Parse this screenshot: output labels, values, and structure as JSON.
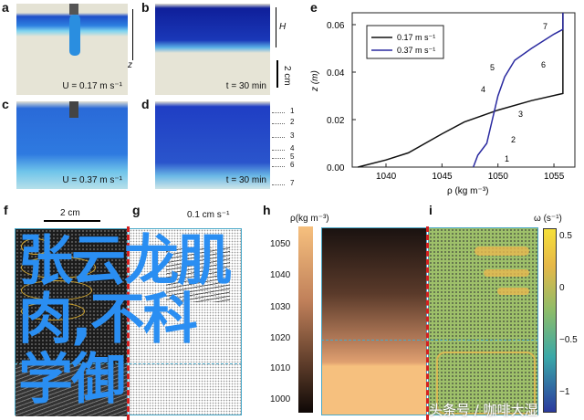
{
  "panels": {
    "a": {
      "label": "a",
      "caption": "U = 0.17 m s⁻¹",
      "axis": "z"
    },
    "b": {
      "label": "b",
      "caption": "t = 30 min",
      "height_label": "H",
      "scale": "2 cm"
    },
    "c": {
      "label": "c",
      "caption": "U = 0.37 m s⁻¹"
    },
    "d": {
      "label": "d",
      "caption": "t = 30 min",
      "levels": [
        "1",
        "2",
        "3",
        "4",
        "5",
        "6",
        "7"
      ]
    },
    "e": {
      "label": "e"
    },
    "f": {
      "label": "f",
      "scale": "2 cm"
    },
    "g": {
      "label": "g",
      "scale": "0.1 cm s⁻¹"
    },
    "h": {
      "label": "h",
      "colorbar_title": "ρ(kg m⁻³)",
      "colorbar_ticks": [
        "1050",
        "1040",
        "1030",
        "1020",
        "1010",
        "1000"
      ]
    },
    "i": {
      "label": "i",
      "colorbar_title": "ω (s⁻¹)",
      "colorbar_ticks": [
        "0.5",
        "0",
        "−0.5",
        "−1"
      ]
    }
  },
  "chart_data": {
    "type": "line",
    "xlabel": "ρ (kg m⁻³)",
    "ylabel": "z (m)",
    "xlim": [
      1037,
      1057
    ],
    "ylim": [
      0,
      0.065
    ],
    "xticks": [
      "1040",
      "1045",
      "1050",
      "1055"
    ],
    "yticks": [
      "0.00",
      "0.02",
      "0.04",
      "0.06"
    ],
    "legend_position": "top-left",
    "series": [
      {
        "name": "0.17 m s⁻¹",
        "color": "#111111",
        "points": [
          [
            1037.5,
            0
          ],
          [
            1040,
            0.003
          ],
          [
            1042,
            0.006
          ],
          [
            1045,
            0.014
          ],
          [
            1047,
            0.019
          ],
          [
            1050,
            0.024
          ],
          [
            1053,
            0.028
          ],
          [
            1055.8,
            0.031
          ],
          [
            1055.8,
            0.065
          ]
        ]
      },
      {
        "name": "0.37 m s⁻¹",
        "color": "#2a2aa0",
        "points": [
          [
            1047.8,
            0
          ],
          [
            1048.2,
            0.005
          ],
          [
            1049,
            0.01
          ],
          [
            1049.5,
            0.02
          ],
          [
            1050,
            0.03
          ],
          [
            1050.6,
            0.038
          ],
          [
            1051.5,
            0.045
          ],
          [
            1053,
            0.05
          ],
          [
            1055,
            0.056
          ],
          [
            1055.8,
            0.058
          ],
          [
            1055.8,
            0.065
          ]
        ]
      }
    ],
    "annotations": [
      "1",
      "2",
      "3",
      "4",
      "5",
      "6",
      "7"
    ]
  },
  "overlay": {
    "line1": "张云龙肌肉,不科",
    "line2": "学御"
  },
  "watermark": "头条号 / 咖啡大湿"
}
